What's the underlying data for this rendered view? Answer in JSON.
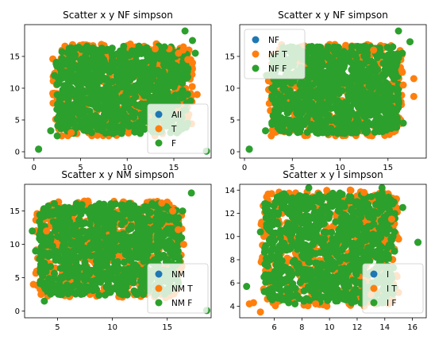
{
  "chart_data": [
    {
      "type": "scatter",
      "title": "Scatter x y NF simpson",
      "xlabel": "",
      "ylabel": "",
      "xlim": [
        -1,
        19
      ],
      "ylim": [
        -1,
        20
      ],
      "xticks": [
        0,
        5,
        10,
        15
      ],
      "yticks": [
        0,
        5,
        10,
        15
      ],
      "grid": false,
      "legend_position": "lower-right",
      "cloud": {
        "x_range": [
          2,
          17
        ],
        "y_range": [
          2.5,
          17
        ]
      },
      "series": [
        {
          "name": "All",
          "color": "#1f77b4",
          "points": [
            [
              0.5,
              0.4
            ],
            [
              18.5,
              0.1
            ]
          ]
        },
        {
          "name": "T",
          "color": "#ff7f0e",
          "points": [
            [
              3,
              2.5
            ],
            [
              4,
              3
            ],
            [
              14.5,
              16.2
            ],
            [
              15.5,
              15.5
            ],
            [
              16.5,
              14.5
            ],
            [
              17.5,
              9
            ],
            [
              16,
              16
            ],
            [
              13,
              16.2
            ],
            [
              17,
              14
            ]
          ]
        },
        {
          "name": "F",
          "color": "#2ca02c",
          "points": [
            [
              0.5,
              0.4
            ],
            [
              18.5,
              0.1
            ],
            [
              16.2,
              19
            ],
            [
              17,
              17.5
            ],
            [
              2.2,
              12
            ],
            [
              1.8,
              3.3
            ],
            [
              17.3,
              15.5
            ],
            [
              15.8,
              13.5
            ],
            [
              16.8,
              8
            ],
            [
              2.5,
              2.5
            ],
            [
              14,
              16.5
            ]
          ]
        }
      ]
    },
    {
      "type": "scatter",
      "title": "Scatter x y NF simpson",
      "xlabel": "",
      "ylabel": "",
      "xlim": [
        -0.5,
        19
      ],
      "ylim": [
        -1,
        20
      ],
      "xticks": [
        0,
        5,
        10,
        15
      ],
      "yticks": [
        0,
        5,
        10,
        15
      ],
      "grid": false,
      "legend_position": "upper-left",
      "cloud": {
        "x_range": [
          2.5,
          16.5
        ],
        "y_range": [
          2.5,
          17
        ]
      },
      "series": [
        {
          "name": "NF",
          "color": "#1f77b4",
          "points": [
            [
              0.5,
              0.4
            ]
          ]
        },
        {
          "name": "NF T",
          "color": "#ff7f0e",
          "points": [
            [
              17.7,
              11.5
            ],
            [
              17.7,
              8.7
            ],
            [
              16.5,
              12.5
            ],
            [
              16.6,
              10.5
            ],
            [
              13.5,
              16
            ],
            [
              3,
              3
            ],
            [
              2.8,
              2.5
            ]
          ]
        },
        {
          "name": "NF F",
          "color": "#2ca02c",
          "points": [
            [
              0.5,
              0.4
            ],
            [
              16.1,
              19
            ],
            [
              17.3,
              17.3
            ],
            [
              2.3,
              12
            ],
            [
              2.2,
              3.3
            ],
            [
              16.5,
              15.5
            ],
            [
              16.6,
              4.5
            ],
            [
              15.5,
              16.5
            ]
          ]
        }
      ]
    },
    {
      "type": "scatter",
      "title": "Scatter x y NM simpson",
      "xlabel": "",
      "ylabel": "",
      "xlim": [
        2,
        19
      ],
      "ylim": [
        -1,
        19
      ],
      "xticks": [
        5,
        10,
        15
      ],
      "yticks": [
        0,
        5,
        10,
        15
      ],
      "grid": false,
      "legend_position": "lower-right",
      "cloud": {
        "x_range": [
          3,
          16.5
        ],
        "y_range": [
          2,
          16.5
        ]
      },
      "series": [
        {
          "name": "NM",
          "color": "#1f77b4",
          "points": [
            [
              18.6,
              0.1
            ]
          ]
        },
        {
          "name": "NM T",
          "color": "#ff7f0e",
          "points": [
            [
              2.8,
              4
            ],
            [
              3.5,
              2.5
            ],
            [
              15.5,
              15
            ],
            [
              16,
              12.2
            ],
            [
              14.5,
              16.2
            ],
            [
              4,
              12
            ],
            [
              16.5,
              10
            ]
          ]
        },
        {
          "name": "NM F",
          "color": "#2ca02c",
          "points": [
            [
              18.6,
              0.1
            ],
            [
              17.2,
              17.7
            ],
            [
              2.7,
              12
            ],
            [
              3.8,
              1.5
            ],
            [
              16.4,
              15
            ],
            [
              15,
              3
            ],
            [
              3,
              9
            ],
            [
              4.5,
              14.5
            ],
            [
              16.3,
              11
            ]
          ]
        }
      ]
    },
    {
      "type": "scatter",
      "title": "Scatter x y I simpson",
      "xlabel": "",
      "ylabel": "",
      "xlim": [
        3.5,
        17
      ],
      "ylim": [
        3,
        14.5
      ],
      "xticks": [
        6,
        8,
        10,
        12,
        14,
        16
      ],
      "yticks": [
        4,
        6,
        8,
        10,
        12,
        14
      ],
      "grid": false,
      "legend_position": "lower-right",
      "cloud": {
        "x_range": [
          5,
          15
        ],
        "y_range": [
          4,
          14
        ]
      },
      "series": [
        {
          "name": "I",
          "color": "#1f77b4",
          "points": [
            [
              16.4,
              9.5
            ]
          ]
        },
        {
          "name": "I T",
          "color": "#ff7f0e",
          "points": [
            [
              4.5,
              4.3
            ],
            [
              5,
              3.5
            ],
            [
              4.2,
              4.2
            ],
            [
              11.5,
              14
            ],
            [
              12.5,
              13.8
            ],
            [
              14.5,
              11.5
            ],
            [
              9,
              4.2
            ],
            [
              13,
              5
            ]
          ]
        },
        {
          "name": "I F",
          "color": "#2ca02c",
          "points": [
            [
              16.4,
              9.5
            ],
            [
              8.5,
              14.2
            ],
            [
              13.8,
              14.2
            ],
            [
              4,
              5.7
            ],
            [
              5,
              10.4
            ],
            [
              5.5,
              11
            ],
            [
              6.2,
              13
            ],
            [
              14.2,
              6
            ],
            [
              15.3,
              12.5
            ],
            [
              14.7,
              10.4
            ],
            [
              7.5,
              4.2
            ],
            [
              10,
              13.5
            ]
          ]
        }
      ]
    }
  ]
}
